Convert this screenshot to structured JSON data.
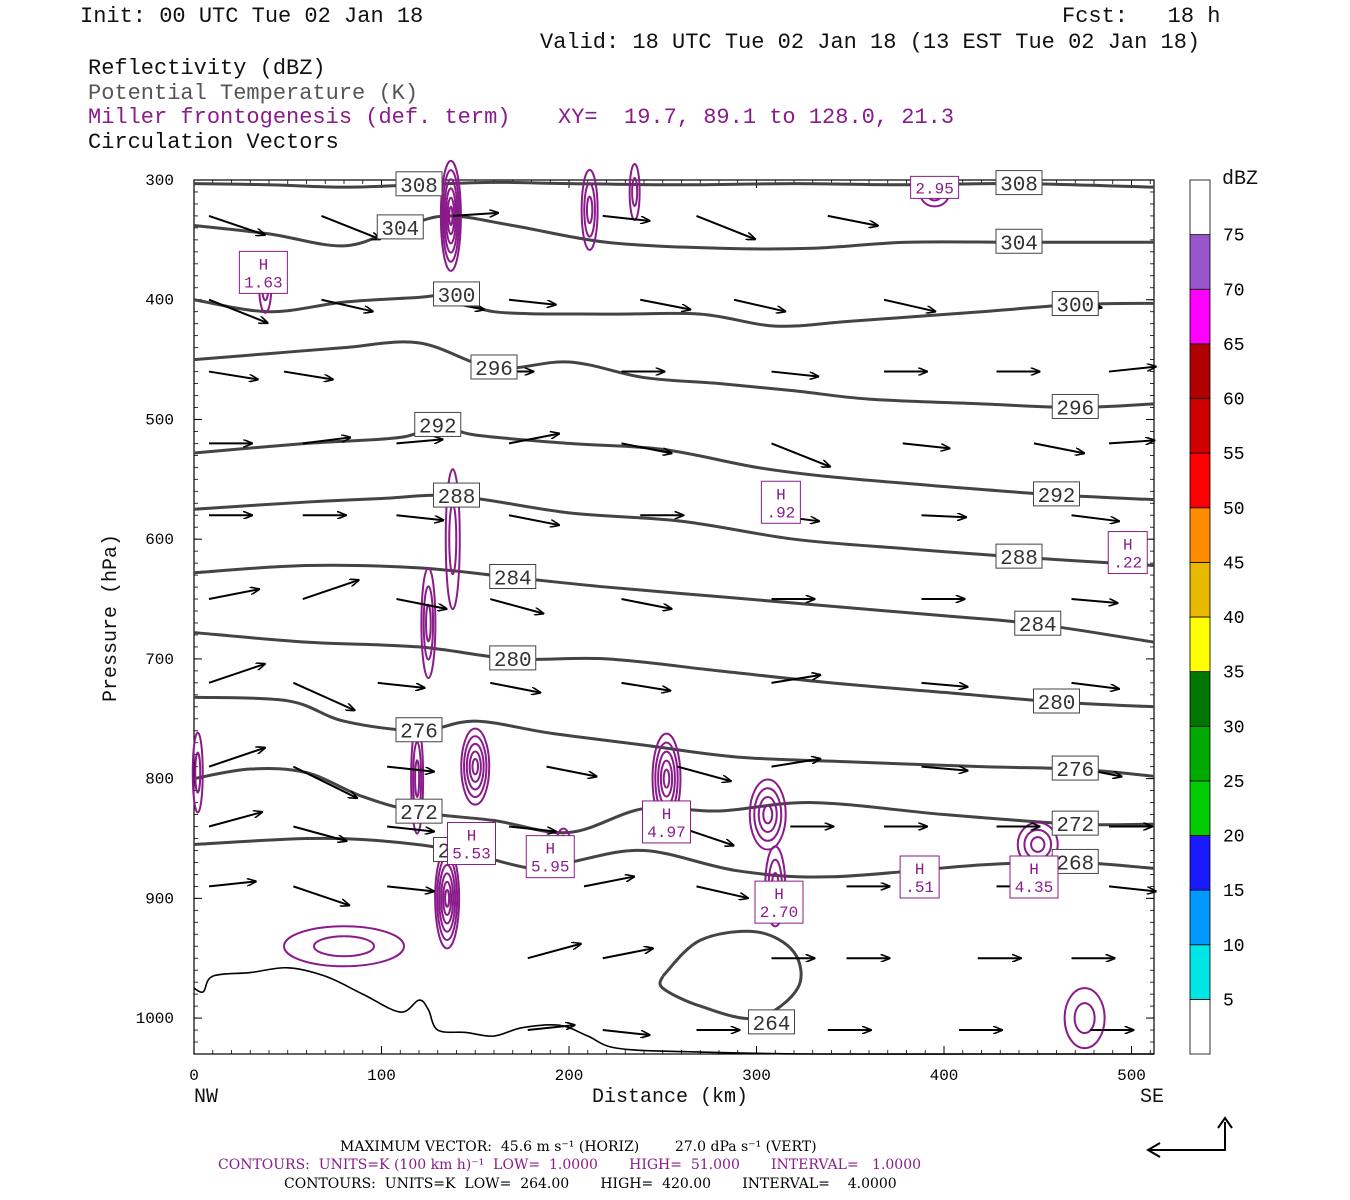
{
  "header": {
    "init": "Init: 00 UTC Tue 02 Jan 18",
    "fcst": "Fcst:   18 h",
    "valid": "Valid: 18 UTC Tue 02 Jan 18 (13 EST Tue 02 Jan 18)"
  },
  "fields": {
    "reflectivity": "Reflectivity (dBZ)",
    "theta": "Potential Temperature (K)",
    "miller": "Miller frontogenesis (def. term)",
    "xy": "XY=  19.7, 89.1 to 128.0, 21.3",
    "vectors": "Circulation Vectors"
  },
  "colors": {
    "purple": "#8a1b8a",
    "theta": "#444444",
    "terrain": "#000000"
  },
  "chart_data": {
    "type": "cross-section",
    "xlabel": "Distance (km)",
    "ylabel": "Pressure (hPa)",
    "xlim": [
      0,
      512
    ],
    "ylim": [
      300,
      1030
    ],
    "x_ticks": [
      0,
      100,
      200,
      300,
      400,
      500
    ],
    "y_ticks": [
      300,
      400,
      500,
      600,
      700,
      800,
      900,
      1000
    ],
    "left_end_label": "NW",
    "right_end_label": "SE",
    "theta_contours": [
      {
        "label": "308",
        "points": [
          [
            0,
            303
          ],
          [
            40,
            304
          ],
          [
            80,
            306
          ],
          [
            120,
            304
          ],
          [
            160,
            302
          ],
          [
            200,
            303
          ],
          [
            260,
            304
          ],
          [
            320,
            303
          ],
          [
            380,
            304
          ],
          [
            440,
            303
          ],
          [
            512,
            306
          ]
        ]
      },
      {
        "label": "304",
        "points": [
          [
            0,
            338
          ],
          [
            40,
            345
          ],
          [
            80,
            355
          ],
          [
            110,
            340
          ],
          [
            135,
            330
          ],
          [
            170,
            338
          ],
          [
            220,
            352
          ],
          [
            280,
            357
          ],
          [
            330,
            357
          ],
          [
            380,
            352
          ],
          [
            440,
            352
          ],
          [
            512,
            352
          ]
        ]
      },
      {
        "label": "300",
        "points": [
          [
            0,
            400
          ],
          [
            40,
            410
          ],
          [
            80,
            402
          ],
          [
            120,
            398
          ],
          [
            140,
            396
          ],
          [
            160,
            410
          ],
          [
            220,
            412
          ],
          [
            270,
            412
          ],
          [
            310,
            422
          ],
          [
            350,
            418
          ],
          [
            420,
            410
          ],
          [
            470,
            404
          ],
          [
            512,
            403
          ]
        ]
      },
      {
        "label": "296",
        "points": [
          [
            0,
            450
          ],
          [
            40,
            445
          ],
          [
            80,
            440
          ],
          [
            120,
            436
          ],
          [
            160,
            457
          ],
          [
            200,
            452
          ],
          [
            240,
            465
          ],
          [
            280,
            470
          ],
          [
            320,
            476
          ],
          [
            360,
            483
          ],
          [
            420,
            487
          ],
          [
            470,
            490
          ],
          [
            512,
            487
          ]
        ]
      },
      {
        "label": "292",
        "points": [
          [
            0,
            528
          ],
          [
            60,
            520
          ],
          [
            110,
            515
          ],
          [
            130,
            505
          ],
          [
            150,
            513
          ],
          [
            200,
            520
          ],
          [
            250,
            525
          ],
          [
            300,
            540
          ],
          [
            340,
            548
          ],
          [
            400,
            556
          ],
          [
            460,
            563
          ],
          [
            512,
            567
          ]
        ]
      },
      {
        "label": "288",
        "points": [
          [
            0,
            575
          ],
          [
            60,
            569
          ],
          [
            100,
            566
          ],
          [
            140,
            564
          ],
          [
            200,
            578
          ],
          [
            260,
            585
          ],
          [
            320,
            600
          ],
          [
            380,
            608
          ],
          [
            440,
            615
          ],
          [
            512,
            622
          ]
        ]
      },
      {
        "label": "284",
        "points": [
          [
            0,
            628
          ],
          [
            60,
            622
          ],
          [
            120,
            624
          ],
          [
            170,
            632
          ],
          [
            220,
            640
          ],
          [
            280,
            648
          ],
          [
            340,
            656
          ],
          [
            400,
            664
          ],
          [
            450,
            671
          ],
          [
            512,
            686
          ]
        ]
      },
      {
        "label": "280",
        "points": [
          [
            0,
            678
          ],
          [
            60,
            686
          ],
          [
            120,
            690
          ],
          [
            170,
            700
          ],
          [
            220,
            700
          ],
          [
            280,
            710
          ],
          [
            340,
            720
          ],
          [
            400,
            728
          ],
          [
            460,
            736
          ],
          [
            512,
            740
          ]
        ]
      },
      {
        "label": "276",
        "points": [
          [
            0,
            732
          ],
          [
            50,
            735
          ],
          [
            80,
            752
          ],
          [
            120,
            760
          ],
          [
            150,
            752
          ],
          [
            190,
            762
          ],
          [
            240,
            772
          ],
          [
            290,
            782
          ],
          [
            350,
            786
          ],
          [
            420,
            790
          ],
          [
            470,
            792
          ],
          [
            512,
            798
          ]
        ]
      },
      {
        "label": "272",
        "points": [
          [
            0,
            800
          ],
          [
            30,
            792
          ],
          [
            60,
            795
          ],
          [
            90,
            815
          ],
          [
            120,
            828
          ],
          [
            160,
            835
          ],
          [
            200,
            845
          ],
          [
            240,
            825
          ],
          [
            280,
            827
          ],
          [
            330,
            820
          ],
          [
            400,
            830
          ],
          [
            470,
            838
          ],
          [
            512,
            838
          ]
        ]
      },
      {
        "label": "268",
        "points": [
          [
            0,
            855
          ],
          [
            60,
            850
          ],
          [
            100,
            852
          ],
          [
            140,
            860
          ],
          [
            180,
            875
          ],
          [
            200,
            870
          ],
          [
            240,
            860
          ],
          [
            290,
            877
          ],
          [
            340,
            882
          ],
          [
            420,
            872
          ],
          [
            470,
            870
          ],
          [
            512,
            875
          ]
        ]
      }
    ],
    "theta_closed_contour": {
      "label": "264",
      "points": [
        [
          250,
          965
        ],
        [
          270,
          935
        ],
        [
          300,
          928
        ],
        [
          320,
          945
        ],
        [
          322,
          975
        ],
        [
          300,
          1000
        ],
        [
          270,
          990
        ],
        [
          250,
          975
        ],
        [
          250,
          965
        ]
      ]
    },
    "frontogenesis_maxima": [
      {
        "label": "H",
        "value": "1.63",
        "x": 37,
        "p": 378
      },
      {
        "label": "H",
        "value": "5.53",
        "x": 148,
        "p": 855
      },
      {
        "label": "H",
        "value": "5.95",
        "x": 190,
        "p": 866
      },
      {
        "label": "H",
        "value": "4.97",
        "x": 252,
        "p": 837
      },
      {
        "label": "H",
        "value": "2.70",
        "x": 312,
        "p": 904
      },
      {
        "label": "H",
        "value": ".92",
        "x": 313,
        "p": 570
      },
      {
        "label": "H",
        "value": ".51",
        "x": 387,
        "p": 883
      },
      {
        "label": "H",
        "value": "4.35",
        "x": 448,
        "p": 883
      },
      {
        "label": "H",
        "value": ".22",
        "x": 498,
        "p": 612
      }
    ],
    "frontogenesis_value_label": "2.95",
    "frontogenesis_value_position": {
      "x": 395,
      "p": 307
    },
    "colorbar": {
      "title": "dBZ",
      "levels": [
        "5",
        "10",
        "15",
        "20",
        "25",
        "30",
        "35",
        "40",
        "45",
        "50",
        "55",
        "60",
        "65",
        "70",
        "75"
      ],
      "colors": [
        "#00e6e6",
        "#0099ff",
        "#1a1aff",
        "#00cc00",
        "#00aa00",
        "#007700",
        "#ffff00",
        "#e6b800",
        "#ff8c00",
        "#ff0000",
        "#d00000",
        "#b00000",
        "#ff00ff",
        "#9955cc",
        "#ffffff"
      ]
    },
    "footer": {
      "max_vector": "MAXIMUM VECTOR:  45.6 m s⁻¹ (HORIZ)        27.0 dPa s⁻¹ (VERT)",
      "contours_purple": "CONTOURS:  UNITS=K (100 km h)⁻¹  LOW=  1.0000       HIGH=  51.000       INTERVAL=   1.0000",
      "contours_black": "CONTOURS:  UNITS=K  LOW=  264.00       HIGH=  420.00       INTERVAL=    4.0000"
    }
  }
}
